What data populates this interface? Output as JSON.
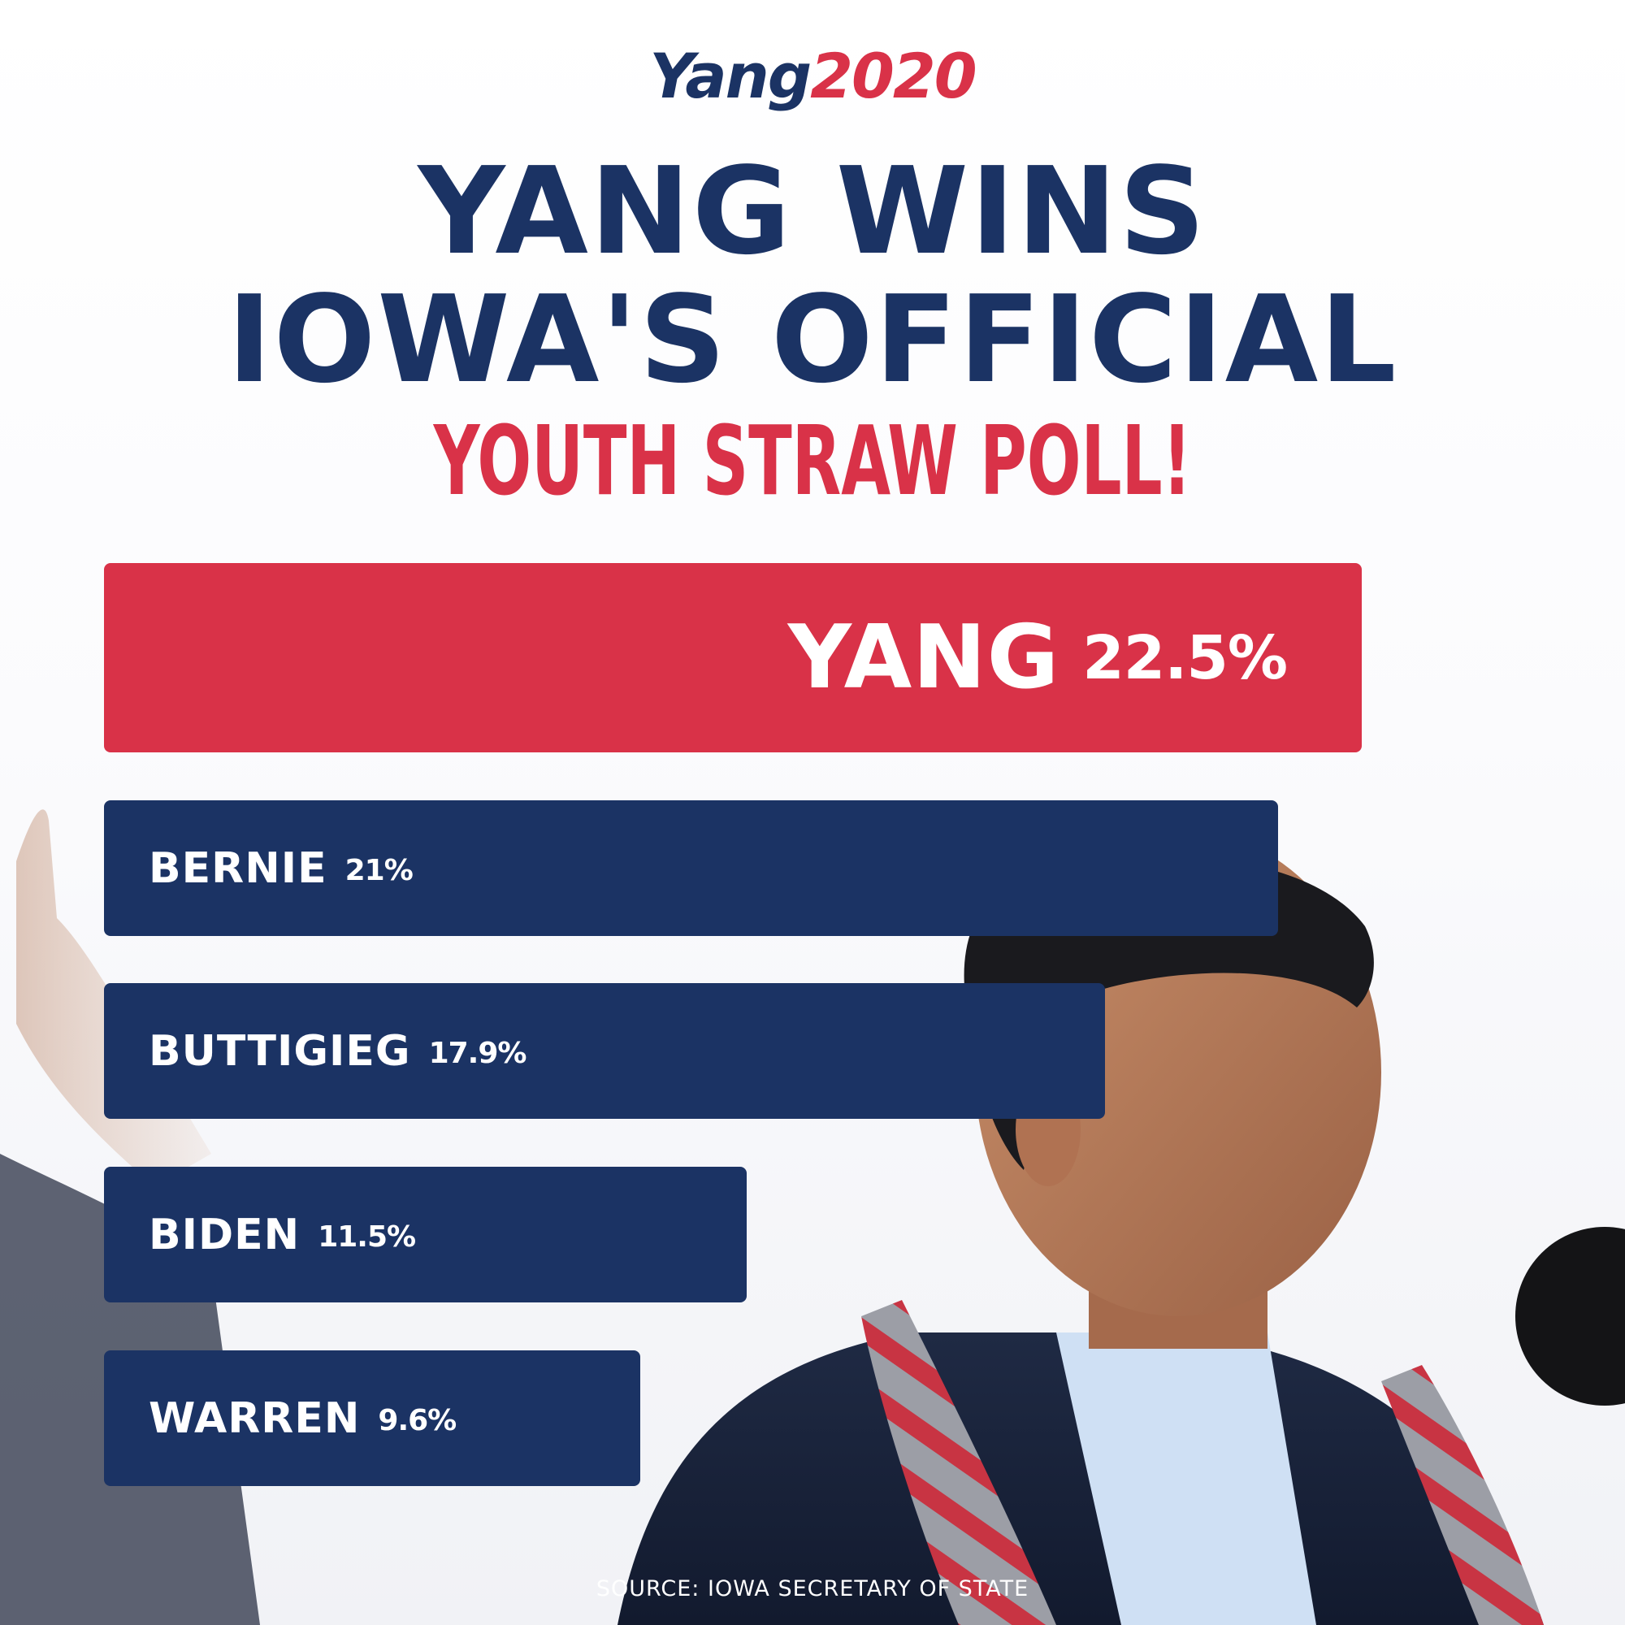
{
  "logo": {
    "word": "Yang",
    "year": "2020"
  },
  "headline": {
    "line1": "YANG WINS",
    "line2": "IOWA'S OFFICIAL",
    "line3": "YOUTH STRAW POLL!"
  },
  "chart_data": {
    "type": "bar",
    "orientation": "horizontal",
    "categories": [
      "YANG",
      "BERNIE",
      "BUTTIGIEG",
      "BIDEN",
      "WARREN"
    ],
    "values": [
      22.5,
      21,
      17.9,
      11.5,
      9.6
    ],
    "value_labels": [
      "22.5%",
      "21%",
      "17.9%",
      "11.5%",
      "9.6%"
    ],
    "highlight_index": 0,
    "grid": false,
    "legend": "none",
    "colors": {
      "winner": "#d93248",
      "other": "#1b3364"
    }
  },
  "source": "SOURCE: IOWA SECRETARY OF STATE",
  "colors": {
    "navy": "#1b3364",
    "red": "#d93248"
  }
}
